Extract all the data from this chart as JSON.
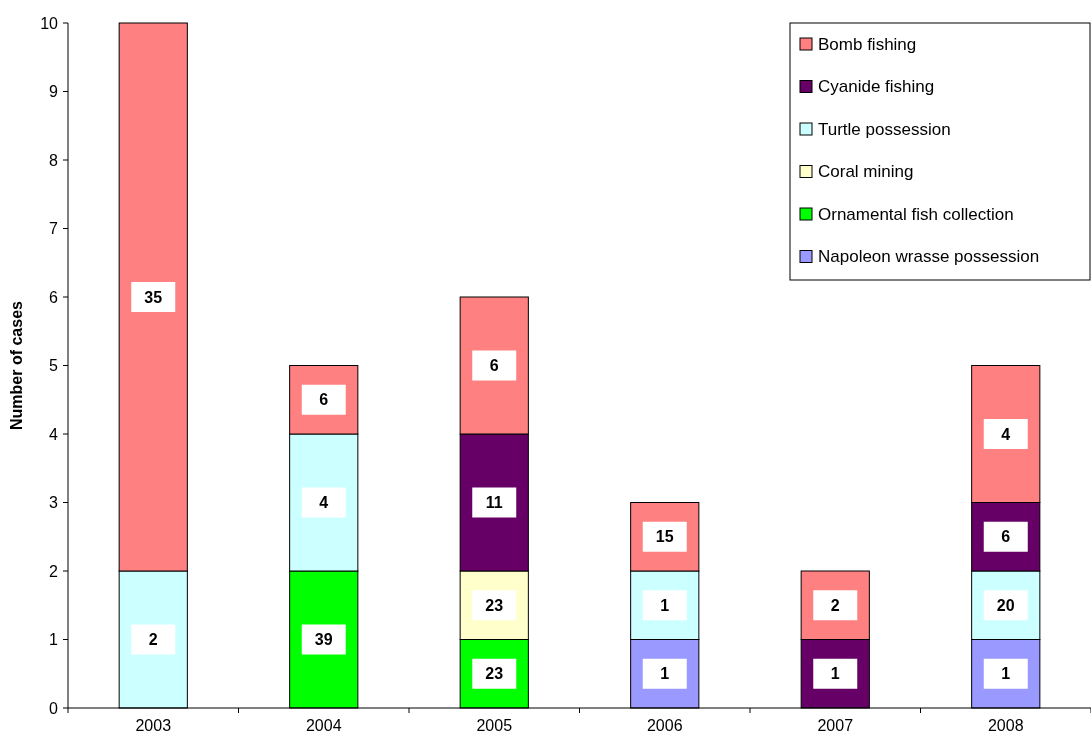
{
  "chart_data": {
    "type": "bar",
    "stacked": true,
    "ylabel": "Number of cases",
    "categories": [
      "2003",
      "2004",
      "2005",
      "2006",
      "2007",
      "2008"
    ],
    "series": [
      {
        "name": "Napoleon wrasse possession",
        "color": "#9999ff",
        "values": [
          null,
          null,
          null,
          1,
          null,
          1
        ]
      },
      {
        "name": "Ornamental fish collection",
        "color": "#00ff00",
        "values": [
          null,
          2,
          1,
          null,
          null,
          null
        ]
      },
      {
        "name": "Coral mining",
        "color": "#ffffcc",
        "values": [
          null,
          null,
          1,
          null,
          null,
          null
        ]
      },
      {
        "name": "Turtle possession",
        "color": "#ccffff",
        "values": [
          2,
          2,
          null,
          1,
          null,
          1
        ]
      },
      {
        "name": "Cyanide fishing",
        "color": "#660066",
        "values": [
          null,
          null,
          2,
          null,
          1,
          1
        ]
      },
      {
        "name": "Bomb fishing",
        "color": "#ff8080",
        "values": [
          8,
          1,
          2,
          1,
          1,
          2
        ]
      }
    ],
    "annotations": [
      {
        "text": "2",
        "x": "2003",
        "y": 1
      },
      {
        "text": "35",
        "x": "2003",
        "y": 6
      },
      {
        "text": "39",
        "x": "2004",
        "y": 1
      },
      {
        "text": "4",
        "x": "2004",
        "y": 3
      },
      {
        "text": "6",
        "x": "2004",
        "y": 4.5
      },
      {
        "text": "23",
        "x": "2005",
        "y": 0.5
      },
      {
        "text": "23",
        "x": "2005",
        "y": 1.5
      },
      {
        "text": "11",
        "x": "2005",
        "y": 3
      },
      {
        "text": "6",
        "x": "2005",
        "y": 5
      },
      {
        "text": "1",
        "x": "2006",
        "y": 0.5
      },
      {
        "text": "1",
        "x": "2006",
        "y": 1.5
      },
      {
        "text": "15",
        "x": "2006",
        "y": 2.5
      },
      {
        "text": "1",
        "x": "2007",
        "y": 0.5
      },
      {
        "text": "2",
        "x": "2007",
        "y": 1.5
      },
      {
        "text": "1",
        "x": "2008",
        "y": 0.5
      },
      {
        "text": "20",
        "x": "2008",
        "y": 1.5
      },
      {
        "text": "6",
        "x": "2008",
        "y": 2.5
      },
      {
        "text": "4",
        "x": "2008",
        "y": 4
      }
    ],
    "ylim": [
      0,
      10
    ],
    "yticks": [
      0,
      1,
      2,
      3,
      4,
      5,
      6,
      7,
      8,
      9,
      10
    ],
    "grid": false,
    "legend": "top right"
  }
}
